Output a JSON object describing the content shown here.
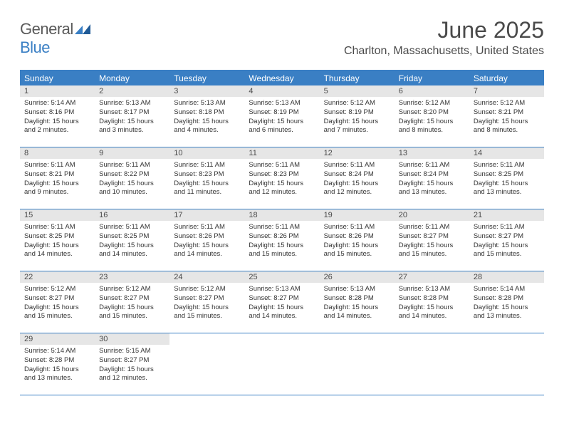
{
  "logo": {
    "line1": "General",
    "line2": "Blue"
  },
  "title": "June 2025",
  "location": "Charlton, Massachusetts, United States",
  "colors": {
    "accent": "#3a7fc4",
    "dayBar": "#e6e6e6",
    "text": "#4a4a4a",
    "bodyText": "#333333"
  },
  "weekdays": [
    "Sunday",
    "Monday",
    "Tuesday",
    "Wednesday",
    "Thursday",
    "Friday",
    "Saturday"
  ],
  "weeks": [
    [
      {
        "n": "1",
        "sunrise": "Sunrise: 5:14 AM",
        "sunset": "Sunset: 8:16 PM",
        "daylight": "Daylight: 15 hours and 2 minutes."
      },
      {
        "n": "2",
        "sunrise": "Sunrise: 5:13 AM",
        "sunset": "Sunset: 8:17 PM",
        "daylight": "Daylight: 15 hours and 3 minutes."
      },
      {
        "n": "3",
        "sunrise": "Sunrise: 5:13 AM",
        "sunset": "Sunset: 8:18 PM",
        "daylight": "Daylight: 15 hours and 4 minutes."
      },
      {
        "n": "4",
        "sunrise": "Sunrise: 5:13 AM",
        "sunset": "Sunset: 8:19 PM",
        "daylight": "Daylight: 15 hours and 6 minutes."
      },
      {
        "n": "5",
        "sunrise": "Sunrise: 5:12 AM",
        "sunset": "Sunset: 8:19 PM",
        "daylight": "Daylight: 15 hours and 7 minutes."
      },
      {
        "n": "6",
        "sunrise": "Sunrise: 5:12 AM",
        "sunset": "Sunset: 8:20 PM",
        "daylight": "Daylight: 15 hours and 8 minutes."
      },
      {
        "n": "7",
        "sunrise": "Sunrise: 5:12 AM",
        "sunset": "Sunset: 8:21 PM",
        "daylight": "Daylight: 15 hours and 8 minutes."
      }
    ],
    [
      {
        "n": "8",
        "sunrise": "Sunrise: 5:11 AM",
        "sunset": "Sunset: 8:21 PM",
        "daylight": "Daylight: 15 hours and 9 minutes."
      },
      {
        "n": "9",
        "sunrise": "Sunrise: 5:11 AM",
        "sunset": "Sunset: 8:22 PM",
        "daylight": "Daylight: 15 hours and 10 minutes."
      },
      {
        "n": "10",
        "sunrise": "Sunrise: 5:11 AM",
        "sunset": "Sunset: 8:23 PM",
        "daylight": "Daylight: 15 hours and 11 minutes."
      },
      {
        "n": "11",
        "sunrise": "Sunrise: 5:11 AM",
        "sunset": "Sunset: 8:23 PM",
        "daylight": "Daylight: 15 hours and 12 minutes."
      },
      {
        "n": "12",
        "sunrise": "Sunrise: 5:11 AM",
        "sunset": "Sunset: 8:24 PM",
        "daylight": "Daylight: 15 hours and 12 minutes."
      },
      {
        "n": "13",
        "sunrise": "Sunrise: 5:11 AM",
        "sunset": "Sunset: 8:24 PM",
        "daylight": "Daylight: 15 hours and 13 minutes."
      },
      {
        "n": "14",
        "sunrise": "Sunrise: 5:11 AM",
        "sunset": "Sunset: 8:25 PM",
        "daylight": "Daylight: 15 hours and 13 minutes."
      }
    ],
    [
      {
        "n": "15",
        "sunrise": "Sunrise: 5:11 AM",
        "sunset": "Sunset: 8:25 PM",
        "daylight": "Daylight: 15 hours and 14 minutes."
      },
      {
        "n": "16",
        "sunrise": "Sunrise: 5:11 AM",
        "sunset": "Sunset: 8:25 PM",
        "daylight": "Daylight: 15 hours and 14 minutes."
      },
      {
        "n": "17",
        "sunrise": "Sunrise: 5:11 AM",
        "sunset": "Sunset: 8:26 PM",
        "daylight": "Daylight: 15 hours and 14 minutes."
      },
      {
        "n": "18",
        "sunrise": "Sunrise: 5:11 AM",
        "sunset": "Sunset: 8:26 PM",
        "daylight": "Daylight: 15 hours and 15 minutes."
      },
      {
        "n": "19",
        "sunrise": "Sunrise: 5:11 AM",
        "sunset": "Sunset: 8:26 PM",
        "daylight": "Daylight: 15 hours and 15 minutes."
      },
      {
        "n": "20",
        "sunrise": "Sunrise: 5:11 AM",
        "sunset": "Sunset: 8:27 PM",
        "daylight": "Daylight: 15 hours and 15 minutes."
      },
      {
        "n": "21",
        "sunrise": "Sunrise: 5:11 AM",
        "sunset": "Sunset: 8:27 PM",
        "daylight": "Daylight: 15 hours and 15 minutes."
      }
    ],
    [
      {
        "n": "22",
        "sunrise": "Sunrise: 5:12 AM",
        "sunset": "Sunset: 8:27 PM",
        "daylight": "Daylight: 15 hours and 15 minutes."
      },
      {
        "n": "23",
        "sunrise": "Sunrise: 5:12 AM",
        "sunset": "Sunset: 8:27 PM",
        "daylight": "Daylight: 15 hours and 15 minutes."
      },
      {
        "n": "24",
        "sunrise": "Sunrise: 5:12 AM",
        "sunset": "Sunset: 8:27 PM",
        "daylight": "Daylight: 15 hours and 15 minutes."
      },
      {
        "n": "25",
        "sunrise": "Sunrise: 5:13 AM",
        "sunset": "Sunset: 8:27 PM",
        "daylight": "Daylight: 15 hours and 14 minutes."
      },
      {
        "n": "26",
        "sunrise": "Sunrise: 5:13 AM",
        "sunset": "Sunset: 8:28 PM",
        "daylight": "Daylight: 15 hours and 14 minutes."
      },
      {
        "n": "27",
        "sunrise": "Sunrise: 5:13 AM",
        "sunset": "Sunset: 8:28 PM",
        "daylight": "Daylight: 15 hours and 14 minutes."
      },
      {
        "n": "28",
        "sunrise": "Sunrise: 5:14 AM",
        "sunset": "Sunset: 8:28 PM",
        "daylight": "Daylight: 15 hours and 13 minutes."
      }
    ],
    [
      {
        "n": "29",
        "sunrise": "Sunrise: 5:14 AM",
        "sunset": "Sunset: 8:28 PM",
        "daylight": "Daylight: 15 hours and 13 minutes."
      },
      {
        "n": "30",
        "sunrise": "Sunrise: 5:15 AM",
        "sunset": "Sunset: 8:27 PM",
        "daylight": "Daylight: 15 hours and 12 minutes."
      },
      null,
      null,
      null,
      null,
      null
    ]
  ]
}
